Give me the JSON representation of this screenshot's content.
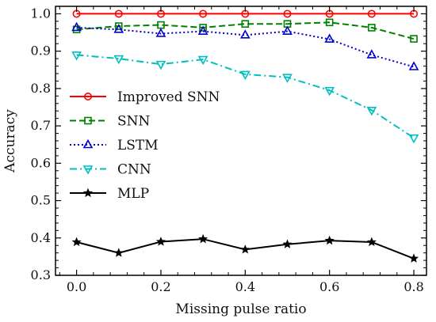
{
  "chart_data": {
    "type": "line",
    "xlabel": "Missing pulse ratio",
    "ylabel": "Accuracy",
    "xlim": [
      -0.05,
      0.83
    ],
    "ylim": [
      0.3,
      1.02
    ],
    "x_ticks": [
      "0.0",
      "0.2",
      "0.4",
      "0.6",
      "0.8"
    ],
    "y_ticks": [
      "0.3",
      "0.4",
      "0.5",
      "0.6",
      "0.7",
      "0.8",
      "0.9",
      "1.0"
    ],
    "grid": false,
    "legend_position": "center-left",
    "x": [
      0.0,
      0.1,
      0.2,
      0.3,
      0.4,
      0.5,
      0.6,
      0.7,
      0.8
    ],
    "series": [
      {
        "name": "Improved SNN",
        "color": "#ff0000",
        "line": "solid",
        "marker": "circle",
        "values": [
          1.0,
          1.0,
          1.0,
          1.0,
          1.0,
          1.0,
          1.0,
          1.0,
          1.0
        ]
      },
      {
        "name": "SNN",
        "color": "#008000",
        "line": "dashed",
        "marker": "square",
        "values": [
          0.958,
          0.967,
          0.97,
          0.963,
          0.973,
          0.973,
          0.977,
          0.963,
          0.933
        ]
      },
      {
        "name": "LSTM",
        "color": "#0000cc",
        "line": "dotted",
        "marker": "triangle-up",
        "values": [
          0.963,
          0.958,
          0.947,
          0.953,
          0.943,
          0.953,
          0.932,
          0.89,
          0.858
        ]
      },
      {
        "name": "CNN",
        "color": "#00bfbf",
        "line": "dashdot",
        "marker": "triangle-down",
        "values": [
          0.89,
          0.88,
          0.865,
          0.878,
          0.838,
          0.83,
          0.795,
          0.742,
          0.668
        ]
      },
      {
        "name": "MLP",
        "color": "#000000",
        "line": "solid",
        "marker": "star",
        "values": [
          0.389,
          0.36,
          0.39,
          0.397,
          0.369,
          0.383,
          0.393,
          0.389,
          0.345
        ]
      }
    ]
  }
}
